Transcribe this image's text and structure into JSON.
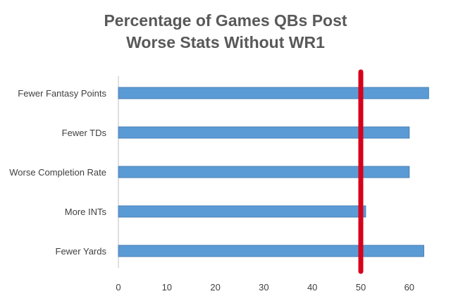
{
  "chart_data": {
    "type": "bar",
    "orientation": "horizontal",
    "title_lines": [
      "Percentage of Games QBs Post",
      "Worse Stats Without WR1"
    ],
    "categories": [
      "Fewer Fantasy Points",
      "Fewer TDs",
      "Worse Completion Rate",
      "More INTs",
      "Fewer Yards"
    ],
    "values": [
      64,
      60,
      60,
      51,
      63
    ],
    "xlim": [
      0,
      65
    ],
    "xticks": [
      0,
      10,
      20,
      30,
      40,
      50,
      60
    ],
    "reference_line": {
      "x": 50,
      "color": "#d9001b"
    },
    "grid": false,
    "legend": "none",
    "xlabel": "",
    "ylabel": "",
    "colors": {
      "bar_fill": "#5b9bd5",
      "bar_stroke": "#4a7fb5",
      "axis": "#bfbfbf",
      "title": "#595959",
      "labels": "#404040"
    }
  }
}
